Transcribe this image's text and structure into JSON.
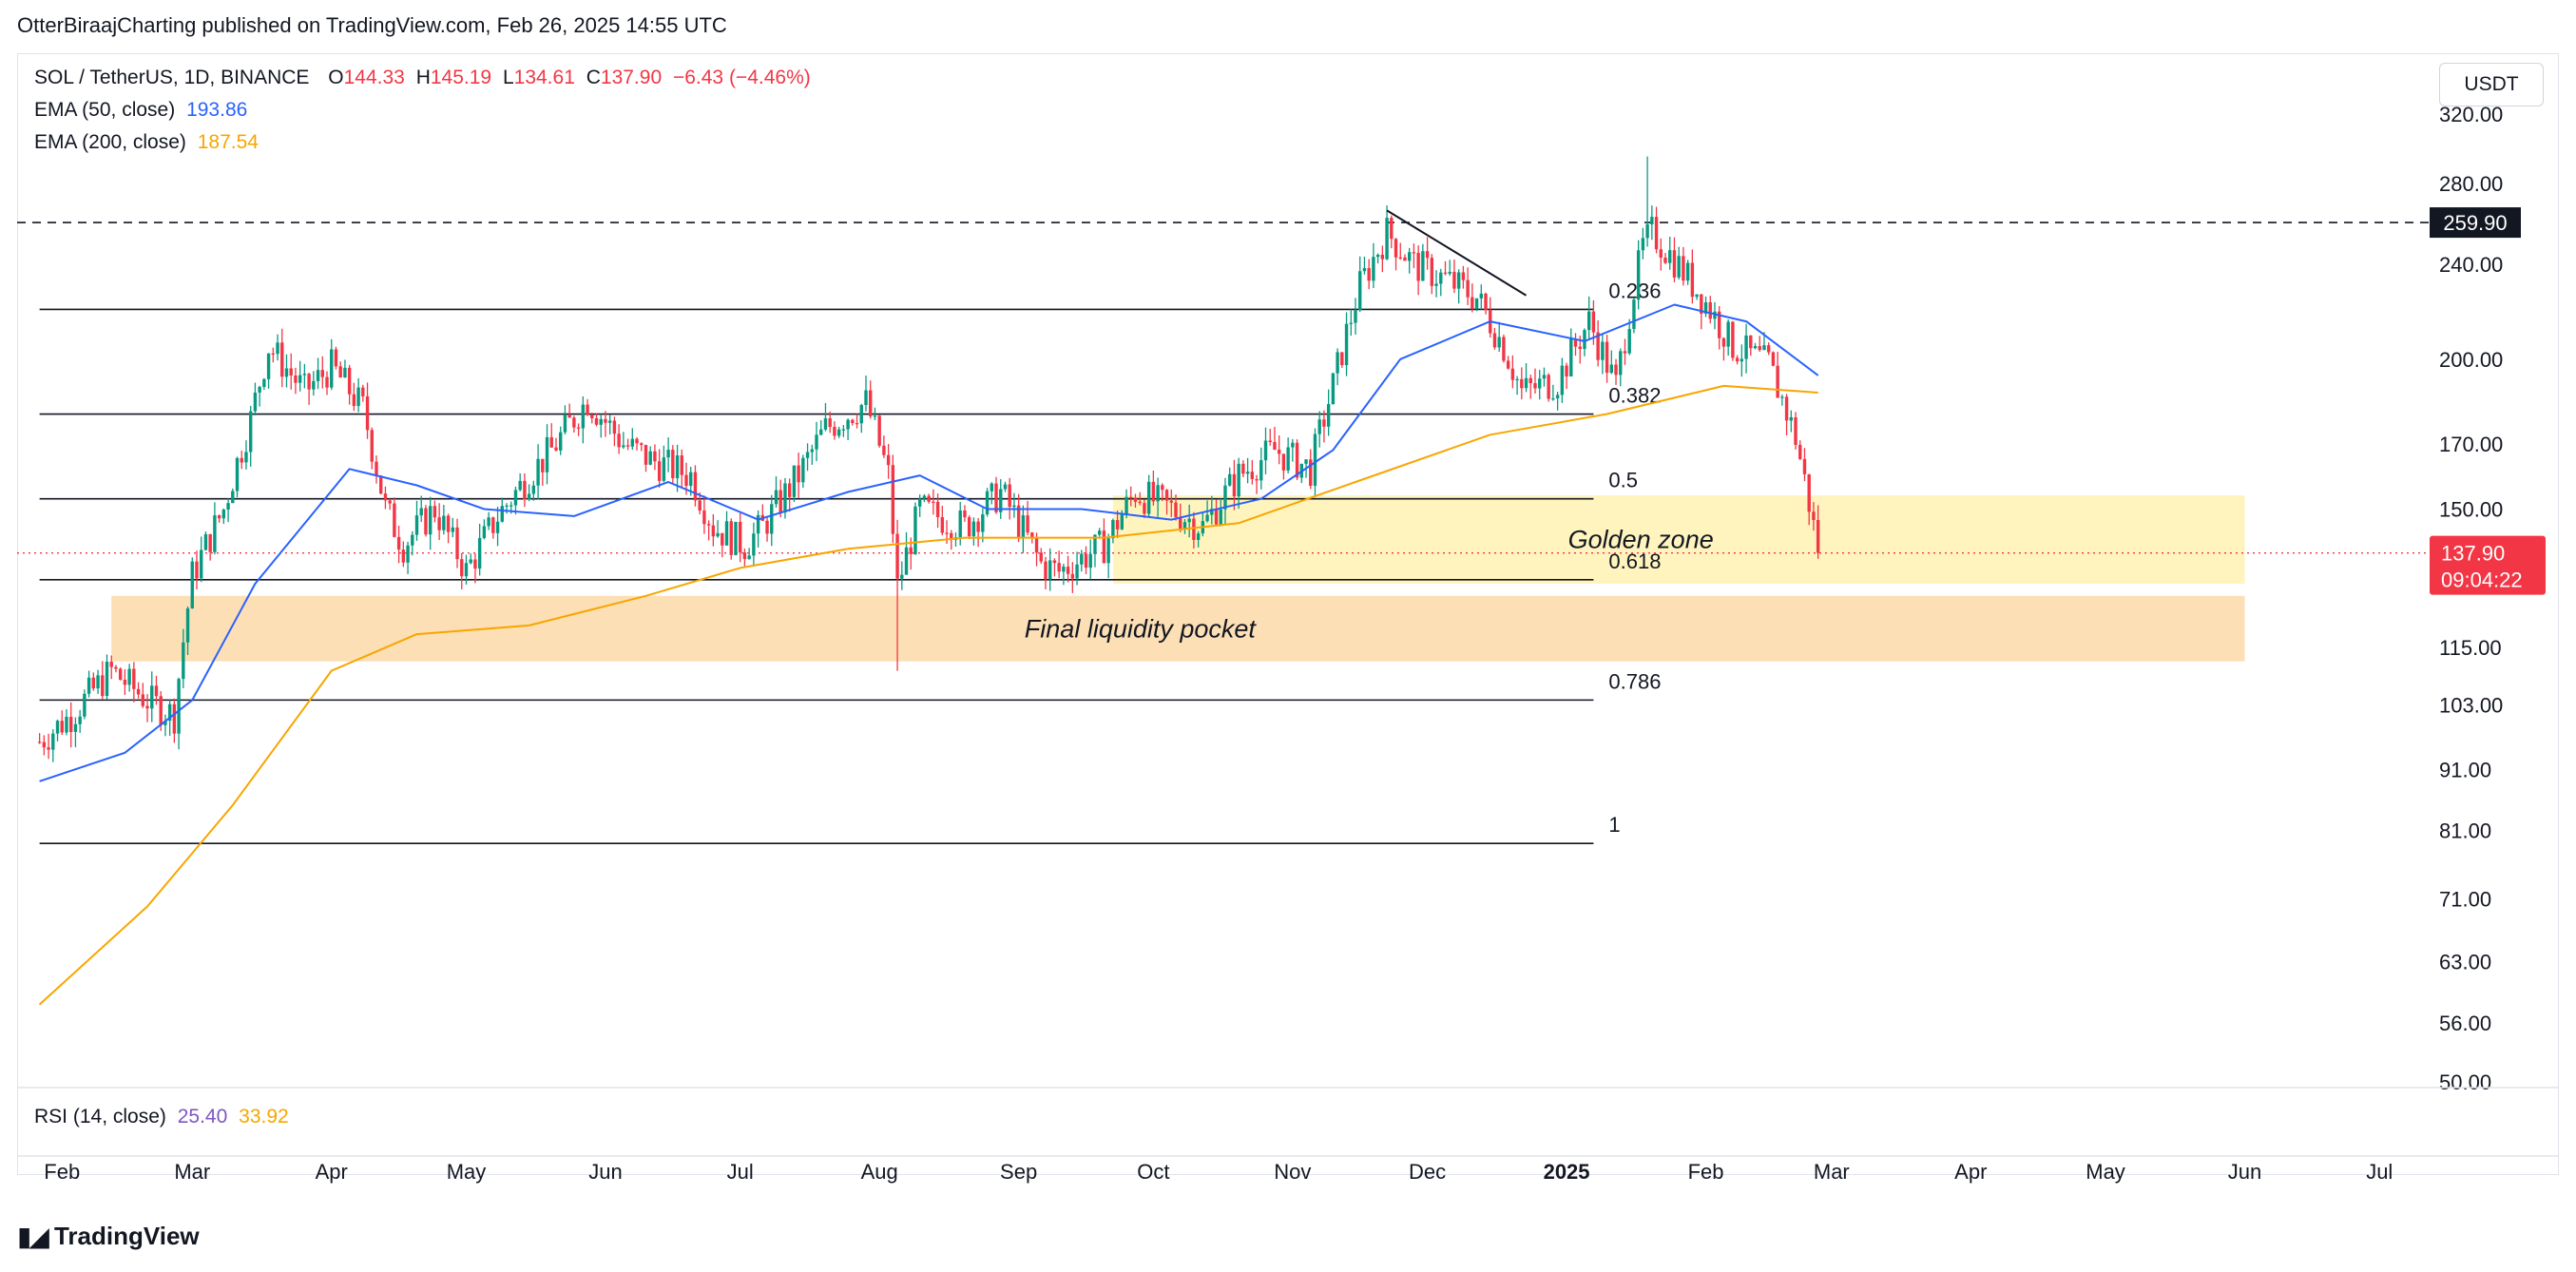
{
  "publisher_line": "OtterBiraajCharting published on TradingView.com, Feb 26, 2025 14:55 UTC",
  "symbol_line": {
    "symbol": "SOL / TetherUS, 1D, BINANCE",
    "open_label": "O",
    "open": "144.33",
    "high_label": "H",
    "high": "145.19",
    "low_label": "L",
    "low": "134.61",
    "close_label": "C",
    "close": "137.90",
    "change": "−6.43 (−4.46%)"
  },
  "indicators": [
    {
      "label": "EMA (50, close)",
      "value": "193.86",
      "color": "#2962ff"
    },
    {
      "label": "EMA (200, close)",
      "value": "187.54",
      "color": "#f7a600"
    }
  ],
  "rsi": {
    "label": "RSI (14, close)",
    "value1": "25.40",
    "value2": "33.92"
  },
  "currency_button": "USDT",
  "branding": "TradingView",
  "chart_data": {
    "type": "candlestick",
    "scale": "log",
    "ylim": [
      50,
      320
    ],
    "y_ticks": [
      320,
      280,
      240,
      200,
      170,
      150,
      115,
      103,
      91,
      81,
      71,
      63,
      56,
      50
    ],
    "y_tick_labels": [
      "320.00",
      "280.00",
      "240.00",
      "200.00",
      "170.00",
      "150.00",
      "115.00",
      "103.00",
      "91.00",
      "81.00",
      "71.00",
      "63.00",
      "56.00",
      "50.00"
    ],
    "x_ticks": [
      "Feb",
      "Mar",
      "Apr",
      "May",
      "Jun",
      "Jul",
      "Aug",
      "Sep",
      "Oct",
      "Nov",
      "Dec",
      "2025",
      "Feb",
      "Mar",
      "Apr",
      "May",
      "Jun",
      "Jul"
    ],
    "x_tick_dates": [
      "2024-02-01",
      "2024-03-01",
      "2024-04-01",
      "2024-05-01",
      "2024-06-01",
      "2024-07-01",
      "2024-08-01",
      "2024-09-01",
      "2024-10-01",
      "2024-11-01",
      "2024-12-01",
      "2025-01-01",
      "2025-02-01",
      "2025-03-01",
      "2025-04-01",
      "2025-05-01",
      "2025-06-01",
      "2025-07-01"
    ],
    "price_path": [
      [
        "2024-01-27",
        96
      ],
      [
        "2024-02-03",
        101
      ],
      [
        "2024-02-12",
        110
      ],
      [
        "2024-02-20",
        104
      ],
      [
        "2024-02-26",
        101
      ],
      [
        "2024-03-01",
        132
      ],
      [
        "2024-03-08",
        150
      ],
      [
        "2024-03-14",
        178
      ],
      [
        "2024-03-18",
        205
      ],
      [
        "2024-03-26",
        188
      ],
      [
        "2024-04-01",
        197
      ],
      [
        "2024-04-08",
        182
      ],
      [
        "2024-04-13",
        150
      ],
      [
        "2024-04-17",
        140
      ],
      [
        "2024-04-24",
        150
      ],
      [
        "2024-05-01",
        133
      ],
      [
        "2024-05-08",
        148
      ],
      [
        "2024-05-15",
        160
      ],
      [
        "2024-05-20",
        168
      ],
      [
        "2024-05-28",
        185
      ],
      [
        "2024-06-05",
        170
      ],
      [
        "2024-06-11",
        165
      ],
      [
        "2024-06-20",
        160
      ],
      [
        "2024-06-25",
        145
      ],
      [
        "2024-07-02",
        140
      ],
      [
        "2024-07-06",
        145
      ],
      [
        "2024-07-14",
        160
      ],
      [
        "2024-07-20",
        175
      ],
      [
        "2024-07-29",
        184
      ],
      [
        "2024-08-03",
        160
      ],
      [
        "2024-08-05",
        129
      ],
      [
        "2024-08-10",
        150
      ],
      [
        "2024-08-20",
        145
      ],
      [
        "2024-08-28",
        155
      ],
      [
        "2024-09-06",
        135
      ],
      [
        "2024-09-10",
        133
      ],
      [
        "2024-09-20",
        140
      ],
      [
        "2024-09-27",
        155
      ],
      [
        "2024-10-05",
        150
      ],
      [
        "2024-10-12",
        145
      ],
      [
        "2024-10-20",
        160
      ],
      [
        "2024-10-28",
        168
      ],
      [
        "2024-11-05",
        162
      ],
      [
        "2024-11-10",
        190
      ],
      [
        "2024-11-16",
        230
      ],
      [
        "2024-11-22",
        255
      ],
      [
        "2024-11-28",
        240
      ],
      [
        "2024-12-06",
        232
      ],
      [
        "2024-12-12",
        225
      ],
      [
        "2024-12-18",
        205
      ],
      [
        "2024-12-22",
        188
      ],
      [
        "2024-12-30",
        192
      ],
      [
        "2025-01-06",
        215
      ],
      [
        "2025-01-12",
        190
      ],
      [
        "2025-01-18",
        248
      ],
      [
        "2025-01-20",
        255
      ],
      [
        "2025-01-25",
        242
      ],
      [
        "2025-02-02",
        220
      ],
      [
        "2025-02-07",
        205
      ],
      [
        "2025-02-15",
        198
      ],
      [
        "2025-02-21",
        172
      ],
      [
        "2025-02-25",
        145
      ],
      [
        "2025-02-26",
        137.9
      ]
    ],
    "price_extremes": {
      "high": {
        "date": "2025-01-19",
        "value": 295
      },
      "low": {
        "date": "2024-08-05",
        "value": 110
      }
    },
    "series": [
      {
        "name": "EMA (50, close)",
        "color": "#2962ff",
        "values": [
          [
            "2024-01-27",
            89
          ],
          [
            "2024-02-15",
            94
          ],
          [
            "2024-03-01",
            104
          ],
          [
            "2024-03-15",
            130
          ],
          [
            "2024-04-05",
            162
          ],
          [
            "2024-04-20",
            157
          ],
          [
            "2024-05-05",
            150
          ],
          [
            "2024-05-25",
            148
          ],
          [
            "2024-06-15",
            158
          ],
          [
            "2024-07-05",
            147
          ],
          [
            "2024-07-25",
            155
          ],
          [
            "2024-08-10",
            160
          ],
          [
            "2024-08-25",
            150
          ],
          [
            "2024-09-15",
            150
          ],
          [
            "2024-10-05",
            147
          ],
          [
            "2024-10-25",
            153
          ],
          [
            "2024-11-10",
            168
          ],
          [
            "2024-11-25",
            200
          ],
          [
            "2024-12-15",
            215
          ],
          [
            "2025-01-05",
            207
          ],
          [
            "2025-01-25",
            222
          ],
          [
            "2025-02-10",
            215
          ],
          [
            "2025-02-26",
            193.86
          ]
        ]
      },
      {
        "name": "EMA (200, close)",
        "color": "#f7a600",
        "values": [
          [
            "2024-01-27",
            58
          ],
          [
            "2024-02-20",
            70
          ],
          [
            "2024-03-10",
            85
          ],
          [
            "2024-04-01",
            110
          ],
          [
            "2024-04-20",
            118
          ],
          [
            "2024-05-15",
            120
          ],
          [
            "2024-06-10",
            127
          ],
          [
            "2024-07-01",
            134
          ],
          [
            "2024-07-25",
            139
          ],
          [
            "2024-08-20",
            142
          ],
          [
            "2024-09-20",
            142
          ],
          [
            "2024-10-20",
            146
          ],
          [
            "2024-11-15",
            158
          ],
          [
            "2024-12-15",
            173
          ],
          [
            "2025-01-10",
            180
          ],
          [
            "2025-02-05",
            190
          ],
          [
            "2025-02-26",
            187.54
          ]
        ]
      }
    ],
    "horizontal_lines": [
      {
        "value": 259.9,
        "style": "dashed",
        "label": "259.90"
      },
      {
        "value": 137.9,
        "style": "dotted",
        "color": "#f23645"
      }
    ],
    "fib_levels": [
      {
        "label": "0.236",
        "value": 220
      },
      {
        "label": "0.382",
        "value": 180
      },
      {
        "label": "0.5",
        "value": 153
      },
      {
        "label": "0.618",
        "value": 131
      },
      {
        "label": "0.786",
        "value": 104
      },
      {
        "label": "1",
        "value": 79
      }
    ],
    "fib_extent": {
      "start": "2024-01-27",
      "end": "2025-01-07"
    },
    "trendline": {
      "from": [
        "2024-11-22",
        266
      ],
      "to": [
        "2024-12-23",
        226
      ]
    },
    "zones": [
      {
        "label": "Golden zone",
        "low": 130,
        "high": 154,
        "start": "2024-09-22",
        "end": "2025-06-01",
        "color": "#fff2b3"
      },
      {
        "label": "Final liquidity pocket",
        "low": 112,
        "high": 127,
        "start": "2024-02-12",
        "end": "2025-06-01",
        "color": "#fdd9a8"
      }
    ],
    "last_price": {
      "value": "137.90",
      "countdown": "09:04:22",
      "color": "#f23645"
    }
  }
}
